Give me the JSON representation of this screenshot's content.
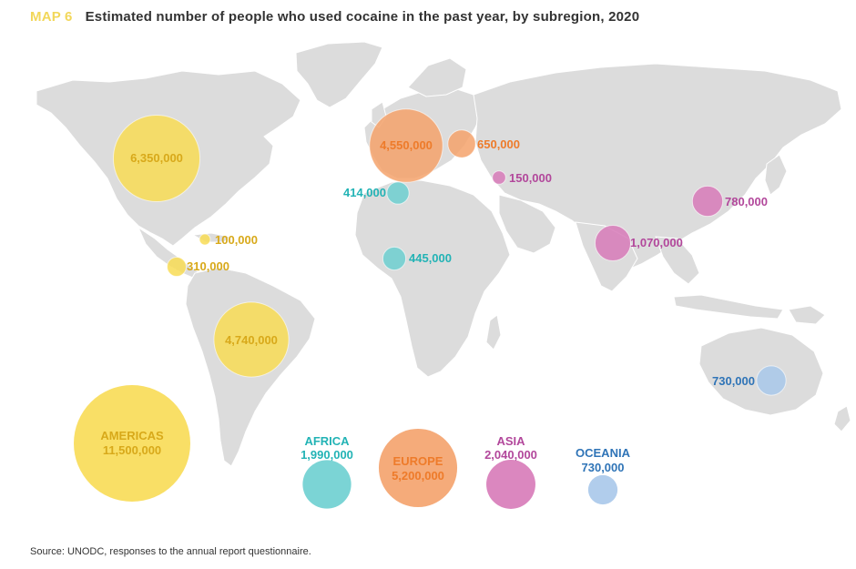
{
  "header": {
    "map_number": "MAP 6",
    "title": "Estimated number of people who used cocaine in the past year, by subregion, 2020"
  },
  "source": "Source: UNODC, responses to the annual report questionnaire.",
  "colors": {
    "americas": "#f8dc55",
    "americas_text": "#d8a91a",
    "europe": "#f4a26b",
    "europe_text": "#ee7b2a",
    "africa": "#6dcfd0",
    "africa_text": "#22b3b5",
    "asia": "#d77ab8",
    "asia_text": "#b2479b",
    "oceania": "#a8c8ea",
    "oceania_text": "#2f74b7",
    "land": "#dcdcdc"
  },
  "map_bubbles": [
    {
      "region": "americas",
      "label": "6,350,000",
      "value": 6350000,
      "place": "North America"
    },
    {
      "region": "americas",
      "label": "4,740,000",
      "value": 4740000,
      "place": "South America"
    },
    {
      "region": "americas",
      "label": "100,000",
      "value": 100000,
      "place": "Caribbean"
    },
    {
      "region": "americas",
      "label": "310,000",
      "value": 310000,
      "place": "Central America"
    },
    {
      "region": "europe",
      "label": "4,550,000",
      "value": 4550000,
      "place": "Western and Central Europe"
    },
    {
      "region": "europe",
      "label": "650,000",
      "value": 650000,
      "place": "Eastern and South-Eastern Europe"
    },
    {
      "region": "africa",
      "label": "414,000",
      "value": 414000,
      "place": "North Africa"
    },
    {
      "region": "africa",
      "label": "445,000",
      "value": 445000,
      "place": "West and Central Africa"
    },
    {
      "region": "asia",
      "label": "150,000",
      "value": 150000,
      "place": "Near and Middle East"
    },
    {
      "region": "asia",
      "label": "780,000",
      "value": 780000,
      "place": "East and South-East Asia"
    },
    {
      "region": "asia",
      "label": "1,070,000",
      "value": 1070000,
      "place": "South Asia"
    },
    {
      "region": "oceania",
      "label": "730,000",
      "value": 730000,
      "place": "Oceania"
    }
  ],
  "legend": [
    {
      "region": "americas",
      "name": "AMERICAS",
      "total": "11,500,000",
      "value": 11500000
    },
    {
      "region": "africa",
      "name": "AFRICA",
      "total": "1,990,000",
      "value": 1990000
    },
    {
      "region": "europe",
      "name": "EUROPE",
      "total": "5,200,000",
      "value": 5200000
    },
    {
      "region": "asia",
      "name": "ASIA",
      "total": "2,040,000",
      "value": 2040000
    },
    {
      "region": "oceania",
      "name": "OCEANIA",
      "total": "730,000",
      "value": 730000
    }
  ]
}
